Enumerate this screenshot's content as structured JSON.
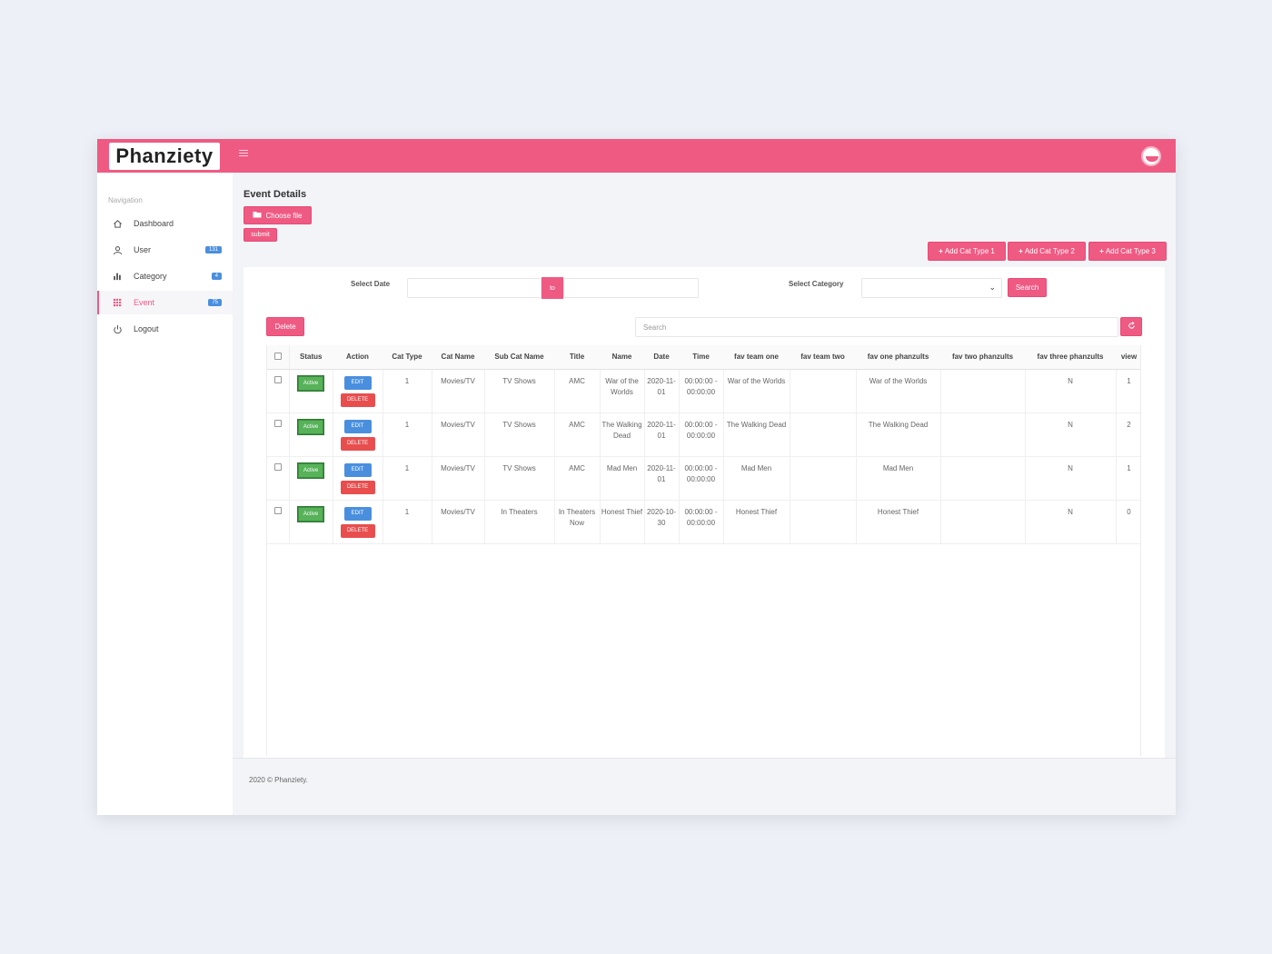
{
  "app": {
    "logo_text": "Phanziety",
    "accent_color": "#ef5a83"
  },
  "sidebar": {
    "heading": "Navigation",
    "items": [
      {
        "label": "Dashboard",
        "icon": "home-icon",
        "badge": ""
      },
      {
        "label": "User",
        "icon": "user-icon",
        "badge": "131"
      },
      {
        "label": "Category",
        "icon": "bar-chart-icon",
        "badge": "4"
      },
      {
        "label": "Event",
        "icon": "grid-icon",
        "badge": "75"
      },
      {
        "label": "Logout",
        "icon": "power-icon",
        "badge": ""
      }
    ]
  },
  "page": {
    "title": "Event Details",
    "choose_file_label": "Choose file",
    "submit_label": "submit",
    "add_cat_1": "Add Cat Type 1",
    "add_cat_2": "Add Cat Type 2",
    "add_cat_3": "Add Cat Type 3"
  },
  "filters": {
    "select_date_label": "Select Date",
    "to_label": "to",
    "select_category_label": "Select Category",
    "search_button": "Search",
    "delete_button": "Delete",
    "search_placeholder": "Search"
  },
  "table": {
    "columns": [
      "Status",
      "Action",
      "Cat Type",
      "Cat Name",
      "Sub Cat Name",
      "Title",
      "Name",
      "Date",
      "Time",
      "fav team one",
      "fav team two",
      "fav one phanzults",
      "fav two phanzults",
      "fav three phanzults",
      "view"
    ],
    "edit_label": "EDIT",
    "delete_label": "DELETE",
    "rows": [
      {
        "status": "Active",
        "cat_type": "1",
        "cat_name": "Movies/TV",
        "sub_cat_name": "TV Shows",
        "title": "AMC",
        "name": "War of the Worlds",
        "date": "2020-11-01",
        "time": "00:00:00 - 00:00:00",
        "fav_team_one": "War of the Worlds",
        "fav_team_two": "",
        "fav_one_phanzults": "War of the Worlds",
        "fav_two_phanzults": "",
        "fav_three_phanzults": "N",
        "view": "1"
      },
      {
        "status": "Active",
        "cat_type": "1",
        "cat_name": "Movies/TV",
        "sub_cat_name": "TV Shows",
        "title": "AMC",
        "name": "The Walking Dead",
        "date": "2020-11-01",
        "time": "00:00:00 - 00:00:00",
        "fav_team_one": "The Walking Dead",
        "fav_team_two": "",
        "fav_one_phanzults": "The Walking Dead",
        "fav_two_phanzults": "",
        "fav_three_phanzults": "N",
        "view": "2"
      },
      {
        "status": "Active",
        "cat_type": "1",
        "cat_name": "Movies/TV",
        "sub_cat_name": "TV Shows",
        "title": "AMC",
        "name": "Mad Men",
        "date": "2020-11-01",
        "time": "00:00:00 - 00:00:00",
        "fav_team_one": "Mad Men",
        "fav_team_two": "",
        "fav_one_phanzults": "Mad Men",
        "fav_two_phanzults": "",
        "fav_three_phanzults": "N",
        "view": "1"
      },
      {
        "status": "Active",
        "cat_type": "1",
        "cat_name": "Movies/TV",
        "sub_cat_name": "In Theaters",
        "title": "In Theaters Now",
        "name": "Honest Thief",
        "date": "2020-10-30",
        "time": "00:00:00 - 00:00:00",
        "fav_team_one": "Honest Thief",
        "fav_team_two": "",
        "fav_one_phanzults": "Honest Thief",
        "fav_two_phanzults": "",
        "fav_three_phanzults": "N",
        "view": "0"
      }
    ]
  },
  "footer": {
    "text": "2020 © Phanziety."
  }
}
